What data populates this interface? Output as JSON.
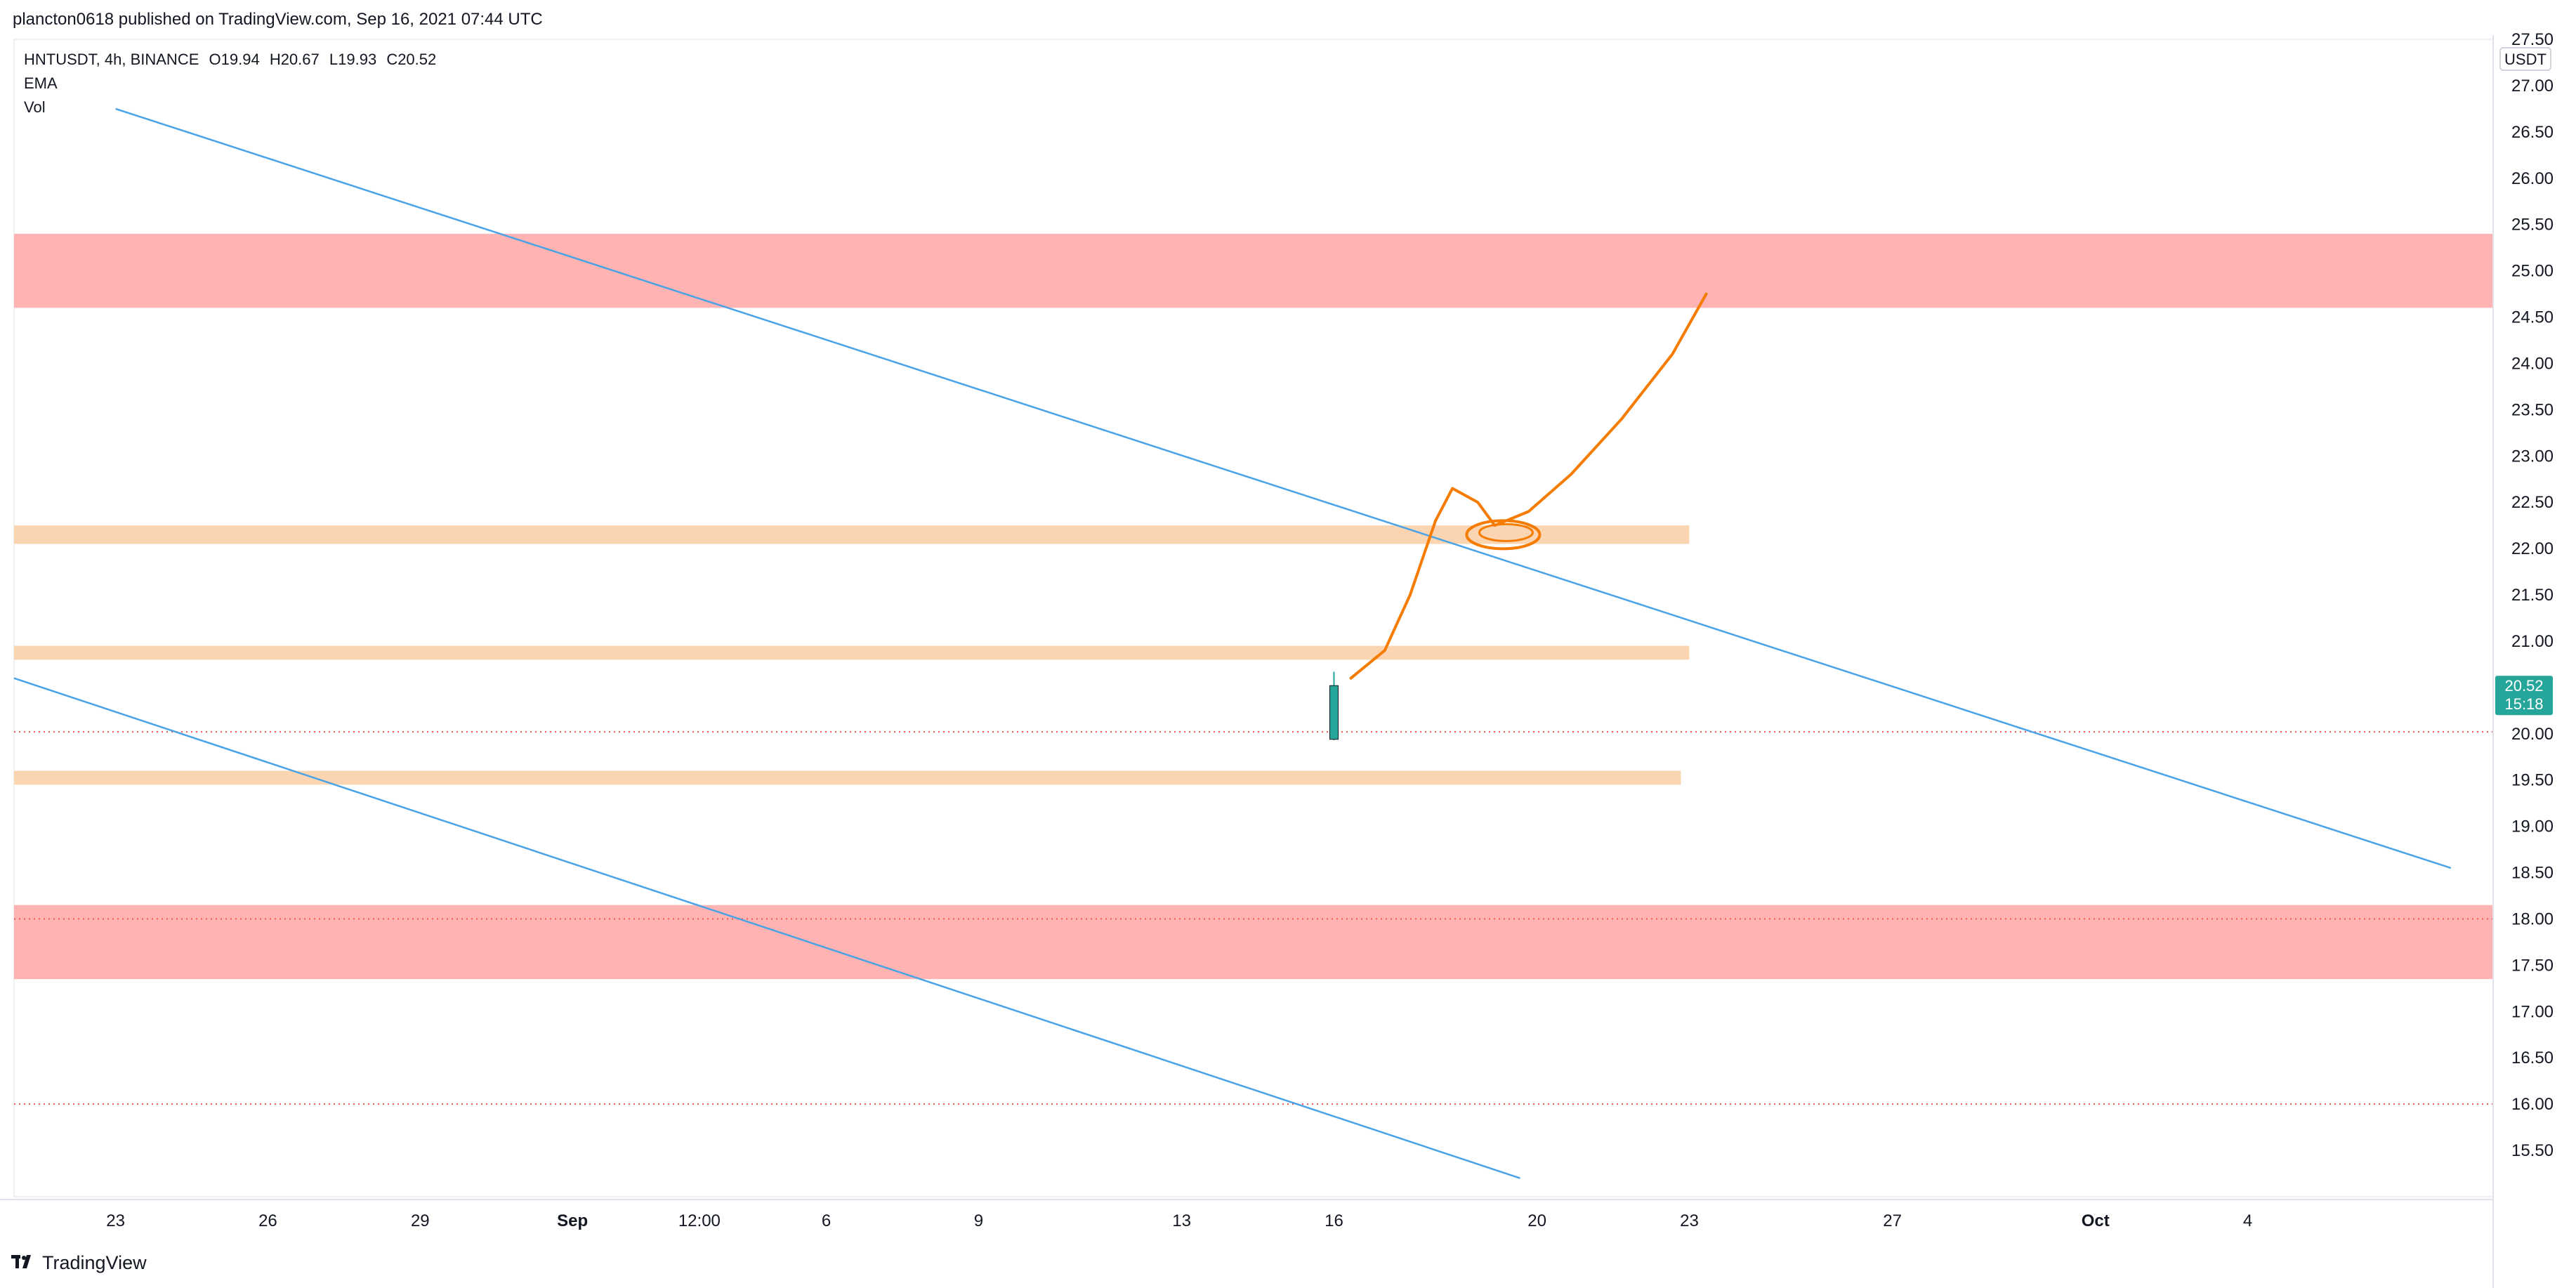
{
  "header": {
    "published_by": "plancton0618 published on TradingView.com, Sep 16, 2021 07:44 UTC"
  },
  "legend": {
    "symbol": "HNTUSDT, 4h, BINANCE",
    "open": "O19.94",
    "high": "H20.67",
    "low": "L19.93",
    "close": "C20.52",
    "indicator_1": "EMA",
    "indicator_2": "Vol"
  },
  "price_axis": {
    "currency": "USDT",
    "last_price": "20.52",
    "countdown": "15:18"
  },
  "footer": {
    "brand": "TradingView"
  },
  "colors": {
    "bull": "#26a69a",
    "bear": "#ef5350",
    "resistance_zone": "#ffb3b3",
    "support_zone": "#fbd5b2",
    "trendline": "#4aa3e6",
    "projection": "#f57c00",
    "price_tag": "#26a69a"
  },
  "chart_data": {
    "type": "candlestick",
    "symbol": "HNTUSDT",
    "interval": "4h",
    "exchange": "BINANCE",
    "ylim": [
      15.0,
      27.5
    ],
    "y_ticks": [
      "15.50",
      "16.00",
      "16.50",
      "17.00",
      "17.50",
      "18.00",
      "18.50",
      "19.00",
      "19.50",
      "20.00",
      "20.50",
      "21.00",
      "21.50",
      "22.00",
      "22.50",
      "23.00",
      "23.50",
      "24.00",
      "24.50",
      "25.00",
      "25.50",
      "26.00",
      "26.50",
      "27.00",
      "27.50"
    ],
    "x_ticks": [
      {
        "label": "23",
        "t": 0
      },
      {
        "label": "26",
        "t": 18
      },
      {
        "label": "29",
        "t": 36
      },
      {
        "label": "Sep",
        "t": 54
      },
      {
        "label": "12:00",
        "t": 69
      },
      {
        "label": "6",
        "t": 84
      },
      {
        "label": "9",
        "t": 102
      },
      {
        "label": "13",
        "t": 126
      },
      {
        "label": "16",
        "t": 144
      },
      {
        "label": "20",
        "t": 168
      },
      {
        "label": "23",
        "t": 186
      },
      {
        "label": "27",
        "t": 210
      },
      {
        "label": "Oct",
        "t": 234
      },
      {
        "label": "4",
        "t": 252
      }
    ],
    "t_range": [
      -12,
      281
    ],
    "candles": [
      [
        19.94,
        20.67,
        19.93,
        20.52
      ]
    ],
    "zones": [
      {
        "kind": "resistance",
        "low": 24.6,
        "high": 25.4
      },
      {
        "kind": "support",
        "low": 22.05,
        "high": 22.25,
        "t_end": 186
      },
      {
        "kind": "support",
        "low": 20.8,
        "high": 20.95,
        "t_end": 186
      },
      {
        "kind": "support",
        "low": 19.45,
        "high": 19.6,
        "t_end": 185
      },
      {
        "kind": "resistance",
        "low": 17.35,
        "high": 18.15
      }
    ],
    "dotted_levels": [
      20.02,
      18.0,
      16.0
    ],
    "trendlines": [
      {
        "from": [
          0,
          26.75
        ],
        "to": [
          276,
          18.55
        ]
      },
      {
        "from": [
          -12,
          20.6
        ],
        "to": [
          166,
          15.2
        ]
      }
    ],
    "projection_path": [
      [
        146,
        20.6
      ],
      [
        150,
        20.9
      ],
      [
        153,
        21.5
      ],
      [
        156,
        22.3
      ],
      [
        158,
        22.65
      ],
      [
        161,
        22.5
      ],
      [
        163,
        22.25
      ],
      [
        167,
        22.4
      ],
      [
        172,
        22.8
      ],
      [
        178,
        23.4
      ],
      [
        184,
        24.1
      ],
      [
        188,
        24.75
      ]
    ],
    "projection_circle": {
      "t": 164,
      "price": 22.15
    }
  }
}
